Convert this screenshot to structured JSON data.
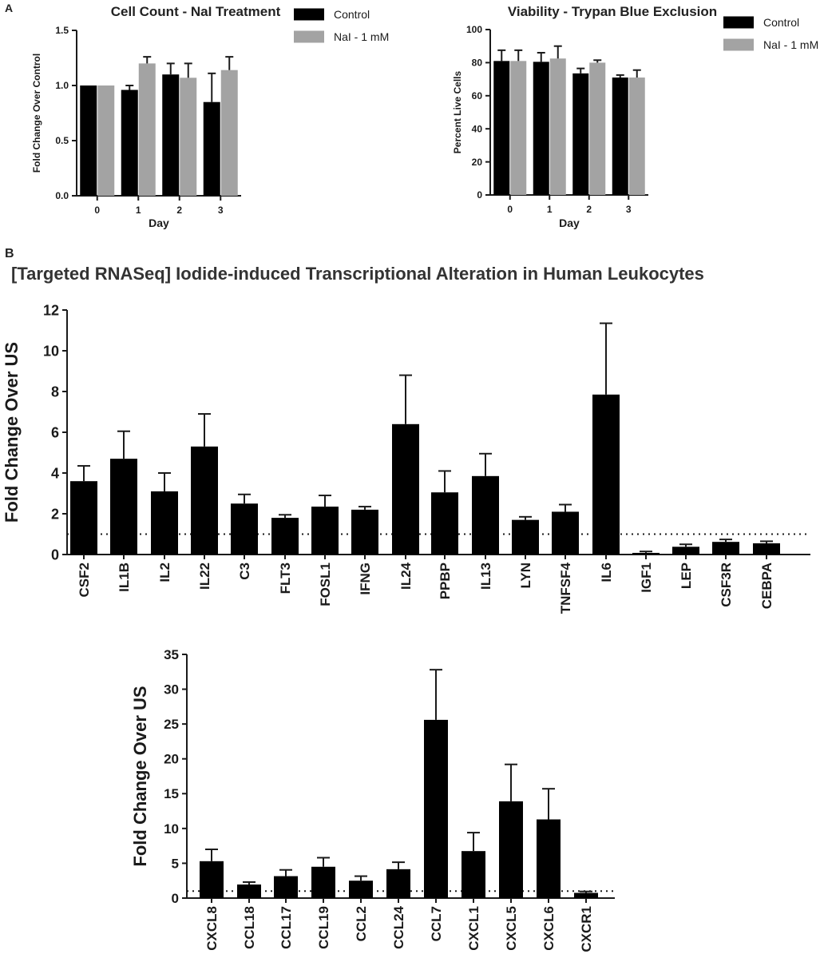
{
  "panel_labels": {
    "a": "A",
    "b": "B"
  },
  "section_b_title": "[Targeted RNASeq] Iodide-induced Transcriptional Alteration in Human Leukocytes",
  "colors": {
    "control": "#000000",
    "treated": "#a3a3a3",
    "axis": "#1a1a1a"
  },
  "chart_data": [
    {
      "id": "cell-count",
      "type": "bar",
      "title": "Cell Count - NaI Treatment",
      "xlabel": "Day",
      "ylabel": "Fold Change Over Control",
      "categories": [
        "0",
        "1",
        "2",
        "3"
      ],
      "ylim": [
        0,
        1.5
      ],
      "yticks": [
        "0.0",
        "0.5",
        "1.0",
        "1.5"
      ],
      "legend": "top-right",
      "series": [
        {
          "name": "Control",
          "values": [
            1.0,
            0.96,
            1.1,
            0.85
          ],
          "errors": [
            0,
            0.04,
            0.1,
            0.26
          ]
        },
        {
          "name": "NaI - 1 mM",
          "values": [
            1.0,
            1.2,
            1.07,
            1.14
          ],
          "errors": [
            0,
            0.06,
            0.13,
            0.12
          ]
        }
      ]
    },
    {
      "id": "viability",
      "type": "bar",
      "title": "Viability - Trypan Blue Exclusion",
      "xlabel": "Day",
      "ylabel": "Percent Live Cells",
      "categories": [
        "0",
        "1",
        "2",
        "3"
      ],
      "ylim": [
        0,
        100
      ],
      "yticks": [
        "0",
        "20",
        "40",
        "60",
        "80",
        "100"
      ],
      "legend": "top-right",
      "series": [
        {
          "name": "Control",
          "values": [
            81,
            80.5,
            73.5,
            71
          ],
          "errors": [
            6.5,
            5.5,
            3,
            1.5
          ]
        },
        {
          "name": "NaI - 1 mM",
          "values": [
            81,
            82.5,
            80,
            71
          ],
          "errors": [
            6.5,
            7.5,
            1.5,
            4.5
          ]
        }
      ]
    },
    {
      "id": "rnaseq-genes",
      "type": "bar",
      "xlabel": "",
      "ylabel": "Fold Change Over US",
      "categories": [
        "CSF2",
        "IL1B",
        "IL2",
        "IL22",
        "C3",
        "FLT3",
        "FOSL1",
        "IFNG",
        "IL24",
        "PPBP",
        "IL13",
        "LYN",
        "TNFSF4",
        "IL6",
        "IGF1",
        "LEP",
        "CSF3R",
        "CEBPA"
      ],
      "ylim": [
        0,
        12
      ],
      "yticks": [
        "0",
        "2",
        "4",
        "6",
        "8",
        "10",
        "12"
      ],
      "reference_line": 1,
      "series": [
        {
          "values": [
            3.6,
            4.7,
            3.1,
            5.3,
            2.5,
            1.8,
            2.35,
            2.2,
            6.4,
            3.05,
            3.85,
            1.7,
            2.1,
            7.85,
            0.08,
            0.38,
            0.62,
            0.55
          ],
          "errors": [
            0.75,
            1.35,
            0.9,
            1.6,
            0.45,
            0.15,
            0.55,
            0.15,
            2.4,
            1.05,
            1.1,
            0.15,
            0.35,
            3.5,
            0.07,
            0.12,
            0.12,
            0.1
          ]
        }
      ]
    },
    {
      "id": "rnaseq-chemokines",
      "type": "bar",
      "xlabel": "",
      "ylabel": "Fold Change Over US",
      "categories": [
        "CXCL8",
        "CCL18",
        "CCL17",
        "CCL19",
        "CCL2",
        "CCL24",
        "CCL7",
        "CXCL1",
        "CXCL5",
        "CXCL6",
        "CXCR1"
      ],
      "ylim": [
        0,
        35
      ],
      "yticks": [
        "0",
        "5",
        "10",
        "15",
        "20",
        "25",
        "30",
        "35"
      ],
      "reference_line": 1,
      "series": [
        {
          "values": [
            5.3,
            1.95,
            3.15,
            4.5,
            2.5,
            4.15,
            25.6,
            6.75,
            13.9,
            11.3,
            0.75
          ],
          "errors": [
            1.7,
            0.35,
            0.9,
            1.3,
            0.65,
            1.0,
            7.2,
            2.65,
            5.3,
            4.4,
            0.2
          ]
        }
      ]
    }
  ]
}
